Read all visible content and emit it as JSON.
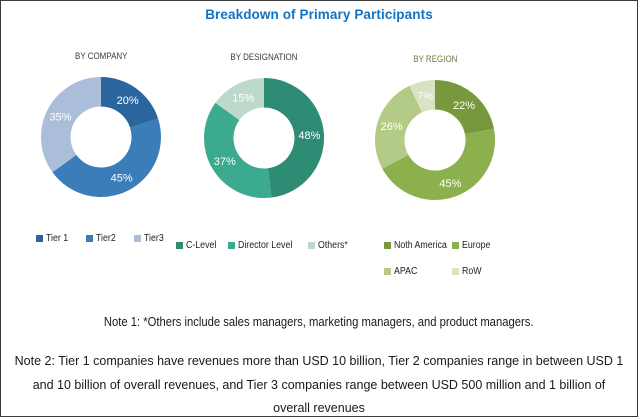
{
  "page": {
    "title": "Breakdown of Primary Participants",
    "title_color": "#1173C5",
    "border_color": "#3b3b3b"
  },
  "chart_data": [
    {
      "type": "donut",
      "title": "BY COMPANY",
      "title_color": "#3b3b3b",
      "legend_position": "bottom-row",
      "segments": [
        {
          "label": "Tier 1",
          "value": 20,
          "color": "#2B659E"
        },
        {
          "label": "Tier2",
          "value": 45,
          "color": "#3B7DB8"
        },
        {
          "label": "Tier3",
          "value": 35,
          "color": "#AABDD9"
        }
      ]
    },
    {
      "type": "donut",
      "title": "BY DESIGNATION",
      "title_color": "#3b3b3b",
      "legend_position": "bottom-row",
      "segments": [
        {
          "label": "C-Level",
          "value": 48,
          "color": "#2E8B74"
        },
        {
          "label": "Director Level",
          "value": 37,
          "color": "#3BAA8E"
        },
        {
          "label": "Others*",
          "value": 15,
          "color": "#BDD9CC"
        }
      ]
    },
    {
      "type": "donut",
      "title": "BY REGION",
      "title_color": "#6E7B3E",
      "legend_position": "bottom-grid-2col",
      "segments": [
        {
          "label": "Noth America",
          "value": 22,
          "color": "#79983D"
        },
        {
          "label": "Europe",
          "value": 45,
          "color": "#8CB04E"
        },
        {
          "label": "APAC",
          "value": 26,
          "color": "#B4CB87"
        },
        {
          "label": "RoW",
          "value": 7,
          "color": "#D8E3C3"
        }
      ]
    }
  ],
  "notes": {
    "note1": "Note 1: *Others include sales managers, marketing managers, and product managers.",
    "note2": "Note 2: Tier 1 companies have revenues more than USD 10 billion, Tier 2 companies range in between USD 1 and 10 billion of overall revenues, and Tier 3 companies range between USD 500 million and 1 billion of overall revenues"
  }
}
